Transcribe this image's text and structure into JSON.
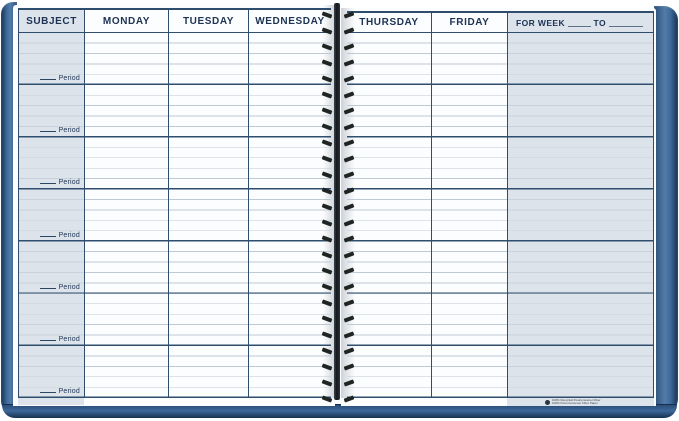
{
  "pages": {
    "left": {
      "columns": [
        {
          "label": "SUBJECT"
        },
        {
          "label": "MONDAY"
        },
        {
          "label": "TUESDAY"
        },
        {
          "label": "WEDNESDAY"
        }
      ],
      "period_label": "Period",
      "period_rows": 7
    },
    "right": {
      "columns": [
        {
          "label": "THURSDAY"
        },
        {
          "label": "FRIDAY"
        }
      ],
      "week": {
        "for_week_label": "FOR WEEK",
        "to_label": "TO"
      }
    }
  },
  "footer": {
    "recycle_note_line1": "100% Recycled Postconsumer Fiber",
    "recycle_note_line2": "100% Post-Consumer Fiber Paper"
  },
  "spiral": {
    "loop_count": 25
  },
  "colors": {
    "cover_blue": "#3d6899",
    "cover_blue_light": "#527ca8",
    "cover_blue_dark": "#2a4d77",
    "cover_edge": "#16304f",
    "navy_line": "#2f4d6d",
    "header_text": "#1c3353",
    "shaded_column": "#dce3ea",
    "shaded_line": "#c9d1da",
    "ruled_line": "#bfc9d4",
    "page_white": "#fcfdfe",
    "spiral_wire": "#1e2522",
    "note_text": "#444444"
  }
}
